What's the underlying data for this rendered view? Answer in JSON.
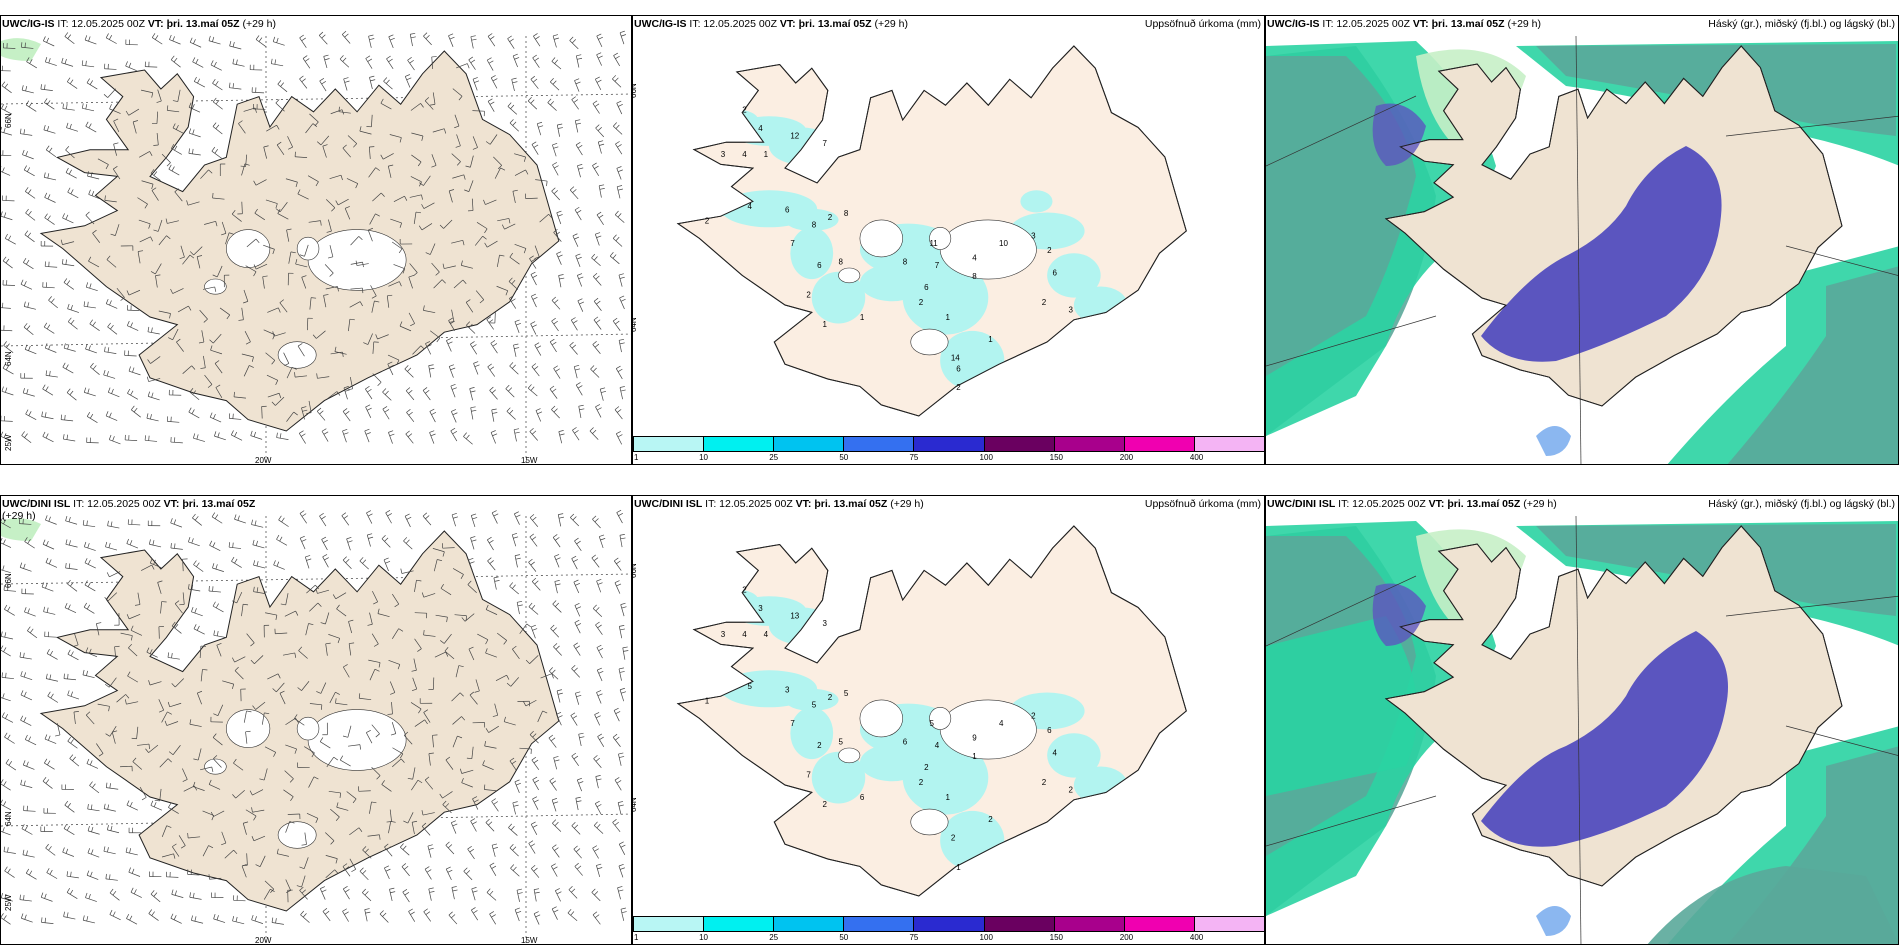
{
  "colors": {
    "land": "#efe3d2",
    "landPrecip": "#fbeee2",
    "precip": "#b2f4f0",
    "hi": "#5b55bf",
    "mid": "#5aa99a",
    "low": "#2ad3a2",
    "lowLight": "#c6f0c6"
  },
  "rows": [
    {
      "wind": {
        "model": "UWC/IG-IS",
        "it": " IT: 12.05.2025 00Z ",
        "vt": "VT: þri. 13.maí 05Z",
        "lead": " (+29 h)"
      },
      "precip": {
        "model": "UWC/IG-IS",
        "it": " IT: 12.05.2025 00Z ",
        "vt": "VT: þri. 13.maí 05Z",
        "lead": " (+29 h)",
        "title": "Uppsöfnuð úrkoma (mm)"
      },
      "cloud": {
        "model": "UWC/IG-IS",
        "it": " IT: 12.05.2025 00Z ",
        "vt": "VT: þri. 13.maí 05Z",
        "lead": " (+29 h)",
        "title": "Háský (gr.), miðský (fj.bl.) og lágský (bl.)"
      }
    },
    {
      "wind": {
        "model": "UWC/DINI ISL",
        "it": " IT: 12.05.2025 00Z ",
        "vt": "VT: þri. 13.maí 05Z",
        "lead": " (+29 h)"
      },
      "precip": {
        "model": "UWC/DINI ISL",
        "it": " IT: 12.05.2025 00Z ",
        "vt": "VT: þri. 13.maí 05Z",
        "lead": " (+29 h)",
        "title": "Uppsöfnuð úrkoma (mm)"
      },
      "cloud": {
        "model": "UWC/DINI ISL",
        "it": " IT: 12.05.2025 00Z ",
        "vt": "VT: þri. 13.maí 05Z",
        "lead": " (+29 h)",
        "title": "Háský (gr.), miðský (fj.bl.) og lágský (bl.)"
      }
    }
  ],
  "axes": {
    "lat66": "66N",
    "lat64": "64N",
    "lon25": "25W",
    "lon20": "20W",
    "lon15": "15W"
  },
  "colorbar": {
    "labels": [
      "1",
      "10",
      "25",
      "50",
      "75",
      "100",
      "150",
      "200",
      "400"
    ],
    "colors": [
      "#b8f6f4",
      "#00f0f0",
      "#00c3f0",
      "#3470f0",
      "#2a2ad0",
      "#6a0060",
      "#a8008c",
      "#f000b0",
      "#f4b4f4"
    ]
  },
  "precipLabels": [
    [
      "2",
      "4",
      "12",
      "7",
      "3",
      "4",
      "1",
      "2",
      "4",
      "6",
      "8",
      "7",
      "2",
      "8",
      "6",
      "8",
      "8",
      "11",
      "7",
      "4",
      "10",
      "3",
      "6",
      "2",
      "2",
      "3",
      "8",
      "6",
      "2",
      "2",
      "1",
      "1",
      "1",
      "14",
      "1",
      "2",
      "6"
    ],
    [
      "2",
      "3",
      "13",
      "3",
      "3",
      "4",
      "4",
      "1",
      "5",
      "3",
      "5",
      "7",
      "2",
      "5",
      "2",
      "5",
      "6",
      "5",
      "4",
      "9",
      "4",
      "2",
      "4",
      "6",
      "2",
      "2",
      "1",
      "2",
      "7",
      "2",
      "6",
      "2",
      "1",
      "2",
      "2",
      "1"
    ]
  ]
}
